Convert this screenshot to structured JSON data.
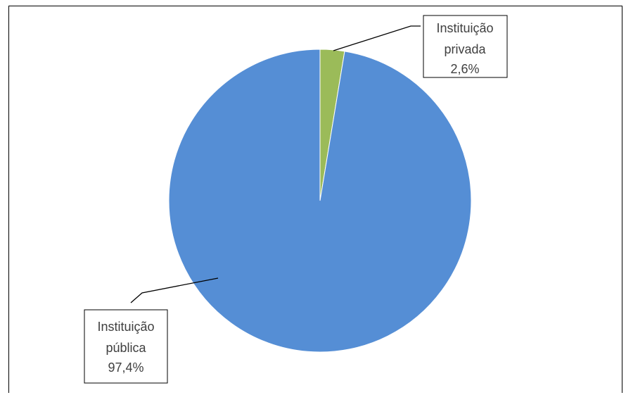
{
  "chart_data": {
    "type": "pie",
    "title": "",
    "slices": [
      {
        "name": "Instituição privada",
        "label_lines": [
          "Instituição",
          "privada"
        ],
        "value_label": "2,6%",
        "value": 2.6,
        "color": "#9bbb59"
      },
      {
        "name": "Instituição pública",
        "label_lines": [
          "Instituição",
          "pública"
        ],
        "value_label": "97,4%",
        "value": 97.4,
        "color": "#558ed5"
      }
    ],
    "start_angle": "12 o'clock",
    "direction": "clockwise",
    "legend": "none"
  }
}
